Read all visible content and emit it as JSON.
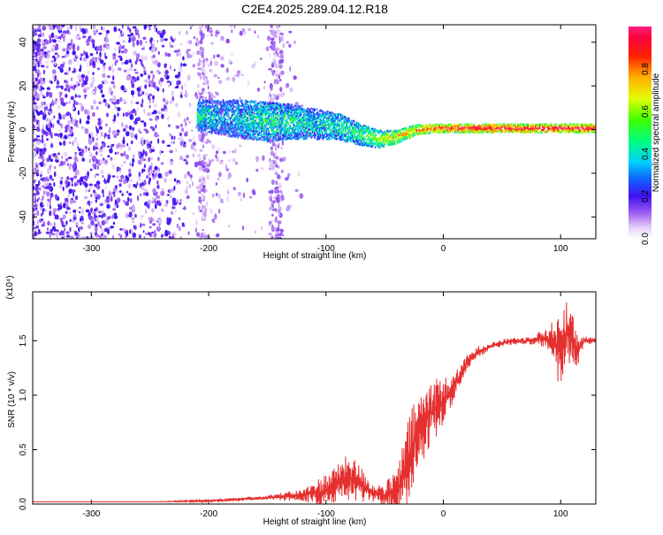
{
  "title": "C2E4.2025.289.04.12.R18",
  "colors": {
    "snr_line": "#e53030",
    "axis": "#000000",
    "background": "#ffffff"
  },
  "chart_data": [
    {
      "type": "heatmap",
      "xlabel": "Height of straight line (km)",
      "ylabel": "Frequency (Hz)",
      "xlim": [
        -350,
        130
      ],
      "ylim": [
        -50,
        48
      ],
      "x_ticks": [
        -300,
        -200,
        -100,
        0,
        100
      ],
      "y_ticks": [
        -40,
        -20,
        0,
        20,
        40
      ],
      "colorbar": {
        "label": "Normalized spectral amplitude",
        "range": [
          0.0,
          1.0
        ],
        "ticks": [
          0.0,
          0.2,
          0.4,
          0.6,
          0.8
        ],
        "tick_labels": [
          "0.0",
          "0.2",
          "0.4",
          "0.6",
          "0.8"
        ],
        "colormap": "rainbow (white-lavender-purple-blue-cyan-green-yellow-orange-red-magenta)"
      },
      "signal_track": [
        {
          "x": -210,
          "freq": 7,
          "width": 14,
          "amp": 0.45
        },
        {
          "x": -190,
          "freq": 6,
          "width": 16,
          "amp": 0.35
        },
        {
          "x": -170,
          "freq": 5,
          "width": 18,
          "amp": 0.4
        },
        {
          "x": -150,
          "freq": 4,
          "width": 18,
          "amp": 0.45
        },
        {
          "x": -130,
          "freq": 4,
          "width": 16,
          "amp": 0.45
        },
        {
          "x": -110,
          "freq": 3,
          "width": 14,
          "amp": 0.4
        },
        {
          "x": -90,
          "freq": 2,
          "width": 12,
          "amp": 0.45
        },
        {
          "x": -70,
          "freq": -2,
          "width": 10,
          "amp": 0.5
        },
        {
          "x": -55,
          "freq": -4,
          "width": 8,
          "amp": 0.6
        },
        {
          "x": -40,
          "freq": -3,
          "width": 6,
          "amp": 0.7
        },
        {
          "x": -25,
          "freq": 0,
          "width": 5,
          "amp": 0.75
        },
        {
          "x": -10,
          "freq": 1,
          "width": 4,
          "amp": 0.85
        },
        {
          "x": 10,
          "freq": 1,
          "width": 4,
          "amp": 0.9
        },
        {
          "x": 50,
          "freq": 1,
          "width": 4,
          "amp": 0.95
        },
        {
          "x": 100,
          "freq": 1,
          "width": 4,
          "amp": 0.95
        },
        {
          "x": 130,
          "freq": 1,
          "width": 4,
          "amp": 0.95
        }
      ]
    },
    {
      "type": "line",
      "xlabel": "Height of straight line (km)",
      "ylabel": "SNR (10 * v/v)",
      "y_multiplier": "(x10⁴)",
      "xlim": [
        -350,
        130
      ],
      "ylim": [
        0.0,
        1.95
      ],
      "x_ticks": [
        -300,
        -200,
        -100,
        0,
        100
      ],
      "y_ticks": [
        0.0,
        0.5,
        1.0,
        1.5
      ],
      "y_tick_labels": [
        "0.0",
        "0.5",
        "1.0",
        "1.5"
      ],
      "series": [
        {
          "x": [
            -350,
            -250,
            -200,
            -180,
            -150,
            -120,
            -100,
            -90,
            -80,
            -70,
            -60,
            -50,
            -40,
            -35,
            -30,
            -25,
            -20,
            -15,
            -10,
            -5,
            0,
            5,
            10,
            15,
            20,
            30,
            40,
            50,
            60,
            70,
            80,
            90,
            95,
            100,
            105,
            110,
            115,
            120,
            125,
            130
          ],
          "y": [
            0.02,
            0.02,
            0.03,
            0.04,
            0.06,
            0.08,
            0.12,
            0.2,
            0.25,
            0.18,
            0.1,
            0.08,
            0.1,
            0.2,
            0.4,
            0.55,
            0.7,
            0.75,
            0.85,
            0.9,
            0.95,
            1.0,
            1.1,
            1.2,
            1.3,
            1.4,
            1.45,
            1.48,
            1.5,
            1.5,
            1.52,
            1.52,
            1.5,
            1.35,
            1.6,
            1.5,
            1.4,
            1.5,
            1.5,
            1.5
          ],
          "noise": [
            0.0,
            0.0,
            0.01,
            0.01,
            0.02,
            0.05,
            0.15,
            0.15,
            0.2,
            0.15,
            0.08,
            0.1,
            0.2,
            0.3,
            0.35,
            0.35,
            0.3,
            0.3,
            0.3,
            0.25,
            0.2,
            0.15,
            0.1,
            0.08,
            0.06,
            0.05,
            0.03,
            0.03,
            0.03,
            0.03,
            0.05,
            0.1,
            0.2,
            0.35,
            0.35,
            0.25,
            0.1,
            0.04,
            0.03,
            0.02
          ]
        }
      ]
    }
  ]
}
